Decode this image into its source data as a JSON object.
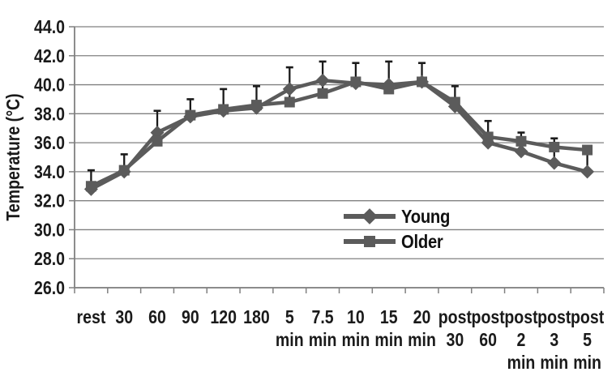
{
  "chart_data": {
    "type": "line",
    "title": "",
    "xlabel": "",
    "ylabel": "Temperature (°C)",
    "ylim": [
      26.0,
      44.0
    ],
    "ytick_step": 2.0,
    "yticks": [
      "44.0",
      "42.0",
      "40.0",
      "38.0",
      "36.0",
      "34.0",
      "32.0",
      "30.0",
      "28.0",
      "26.0"
    ],
    "grid": "horizontal",
    "legend_position": "center-right",
    "categories": [
      [
        "rest"
      ],
      [
        "30"
      ],
      [
        "60"
      ],
      [
        "90"
      ],
      [
        "120"
      ],
      [
        "180"
      ],
      [
        "5",
        "min"
      ],
      [
        "7.5",
        "min"
      ],
      [
        "10",
        "min"
      ],
      [
        "15",
        "min"
      ],
      [
        "20",
        "min"
      ],
      [
        "post",
        "30"
      ],
      [
        "post",
        "60"
      ],
      [
        "post",
        "2",
        "min"
      ],
      [
        "post",
        "3",
        "min"
      ],
      [
        "post",
        "5",
        "min"
      ]
    ],
    "series": [
      {
        "name": "Young",
        "marker": "diamond",
        "values": [
          32.8,
          34.0,
          36.7,
          37.8,
          38.2,
          38.4,
          39.7,
          40.3,
          40.1,
          40.0,
          40.2,
          38.5,
          36.0,
          35.4,
          34.6,
          34.0
        ]
      },
      {
        "name": "Older",
        "marker": "square",
        "values": [
          33.0,
          34.1,
          36.1,
          37.9,
          38.3,
          38.6,
          38.8,
          39.4,
          40.2,
          39.7,
          40.2,
          38.8,
          36.4,
          36.1,
          35.7,
          35.5
        ]
      }
    ],
    "error_bar_tops": [
      34.1,
      35.2,
      38.2,
      39.0,
      39.7,
      39.9,
      41.2,
      41.6,
      41.5,
      41.6,
      41.5,
      39.9,
      37.5,
      36.7,
      36.3,
      35.4
    ],
    "colors": {
      "series": "#5b5b5b",
      "error_bar": "#1a1a1a",
      "gridline": "#808080",
      "axis": "#808080",
      "text": "#1a1a1a",
      "background": "#ffffff"
    }
  }
}
